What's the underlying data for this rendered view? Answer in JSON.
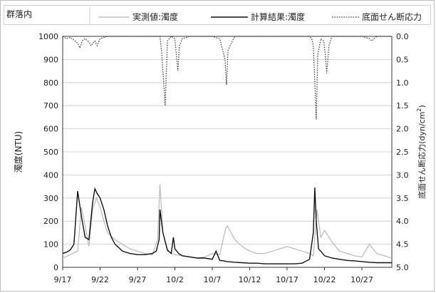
{
  "chart_data": {
    "type": "line",
    "title": "群落内",
    "ylabel": "濁度(NTU)",
    "y2label": "底面せん断応力(dyn/cm²)",
    "y2label_main": "底面せん断応力(dyn/cm",
    "y2label_sup": "2",
    "y2label_close": ")",
    "ylim": [
      0,
      1000
    ],
    "y2lim": [
      0.0,
      5.0
    ],
    "y2_inverted": true,
    "xlim": [
      "9/17",
      "10/31"
    ],
    "grid": "horizontal",
    "legend_position": "top",
    "x_ticks": [
      "9/17",
      "9/22",
      "9/27",
      "10/2",
      "10/7",
      "10/12",
      "10/17",
      "10/22",
      "10/27"
    ],
    "y_ticks": [
      "0",
      "100",
      "200",
      "300",
      "400",
      "500",
      "600",
      "700",
      "800",
      "900",
      "1000"
    ],
    "y2_ticks": [
      "0.0",
      "0.5",
      "1.0",
      "1.5",
      "2.0",
      "2.5",
      "3.0",
      "3.5",
      "4.0",
      "4.5",
      "5.0"
    ],
    "series": [
      {
        "name": "実測値:濁度",
        "axis": "left",
        "style": "light-gray",
        "x": [
          "9/17",
          "9/18",
          "9/19",
          "9/19.5",
          "9/20",
          "9/20.5",
          "9/21",
          "9/21.5",
          "9/22",
          "9/22.5",
          "9/23",
          "9/24",
          "9/25",
          "9/26",
          "9/27",
          "9/28",
          "9/29",
          "9/29.7",
          "9/30",
          "9/30.4",
          "10/1",
          "10/2",
          "10/3",
          "10/4",
          "10/5",
          "10/6",
          "10/7",
          "10/8",
          "10/8.8",
          "10/9",
          "10/9.5",
          "10/10",
          "10/11",
          "10/12",
          "10/13",
          "10/14",
          "10/15",
          "10/16",
          "10/17",
          "10/18",
          "10/19",
          "10/20",
          "10/20.5",
          "10/21",
          "10/21.5",
          "10/22",
          "10/23",
          "10/24",
          "10/25",
          "10/26",
          "10/27",
          "10/28",
          "10/29",
          "10/30",
          "10/31"
        ],
        "values": [
          40,
          55,
          70,
          260,
          180,
          90,
          250,
          300,
          260,
          200,
          150,
          120,
          100,
          80,
          70,
          60,
          55,
          120,
          360,
          150,
          70,
          55,
          50,
          45,
          40,
          45,
          60,
          55,
          170,
          180,
          150,
          120,
          90,
          70,
          60,
          60,
          70,
          80,
          90,
          80,
          70,
          60,
          50,
          250,
          130,
          160,
          110,
          70,
          60,
          50,
          45,
          100,
          60,
          50,
          40
        ]
      },
      {
        "name": "計算結果:濁度",
        "axis": "left",
        "style": "solid",
        "x": [
          "9/17",
          "9/17.5",
          "9/18",
          "9/18.5",
          "9/19",
          "9/19.5",
          "9/20",
          "9/20.5",
          "9/21",
          "9/21.3",
          "9/21.6",
          "9/22",
          "9/22.5",
          "9/23",
          "9/23.5",
          "9/24",
          "9/25",
          "9/26",
          "9/27",
          "9/28",
          "9/29",
          "9/29.5",
          "9/29.9",
          "9/30",
          "9/30.4",
          "9/30.8",
          "10/1",
          "10/1.5",
          "10/1.8",
          "10/2",
          "10/2.5",
          "10/3",
          "10/4",
          "10/5",
          "10/6",
          "10/7",
          "10/7.5",
          "10/8",
          "10/8.5",
          "10/9",
          "10/10",
          "10/11",
          "10/12",
          "10/13",
          "10/14",
          "10/15",
          "10/16",
          "10/17",
          "10/18",
          "10/19",
          "10/20",
          "10/20.5",
          "10/20.7",
          "10/20.9",
          "10/21.2",
          "10/21.5",
          "10/22",
          "10/23",
          "10/24",
          "10/25",
          "10/26",
          "10/27",
          "10/28",
          "10/29",
          "10/30",
          "10/31"
        ],
        "values": [
          60,
          65,
          75,
          100,
          330,
          220,
          130,
          120,
          280,
          340,
          320,
          300,
          250,
          180,
          130,
          100,
          70,
          60,
          55,
          55,
          60,
          70,
          120,
          250,
          150,
          100,
          75,
          60,
          130,
          80,
          60,
          50,
          45,
          40,
          40,
          35,
          70,
          30,
          28,
          25,
          22,
          20,
          18,
          18,
          15,
          15,
          15,
          15,
          15,
          18,
          35,
          150,
          345,
          200,
          80,
          70,
          50,
          40,
          35,
          30,
          28,
          25,
          22,
          20,
          20,
          20
        ]
      },
      {
        "name": "底面せん断応力",
        "axis": "right",
        "style": "dotted",
        "x": [
          "9/17",
          "9/17.5",
          "9/18",
          "9/18.5",
          "9/19",
          "9/19.3",
          "9/19.6",
          "9/20",
          "9/20.5",
          "9/20.8",
          "9/21",
          "9/21.3",
          "9/21.6",
          "9/22",
          "9/23",
          "9/24",
          "9/25",
          "9/26",
          "9/27",
          "9/28",
          "9/29",
          "9/30",
          "9/30.2",
          "9/30.5",
          "9/30.7",
          "9/30.9",
          "10/1",
          "10/1.5",
          "10/2",
          "10/2.2",
          "10/2.4",
          "10/2.6",
          "10/3",
          "10/4",
          "10/5",
          "10/6",
          "10/7",
          "10/8",
          "10/8.7",
          "10/8.9",
          "10/9.1",
          "10/10",
          "10/12",
          "10/15",
          "10/17",
          "10/18",
          "10/19",
          "10/20",
          "10/20.3",
          "10/20.5",
          "10/20.7",
          "10/20.9",
          "10/21.1",
          "10/21.5",
          "10/21.9",
          "10/22.1",
          "10/22.3",
          "10/22.6",
          "10/23",
          "10/25",
          "10/27",
          "10/28",
          "10/28.3",
          "10/28.6",
          "10/29",
          "10/31"
        ],
        "values": [
          0.0,
          0.05,
          0.02,
          0.08,
          0.15,
          0.25,
          0.1,
          0.05,
          0.12,
          0.2,
          0.15,
          0.1,
          0.2,
          0.05,
          0.0,
          0.0,
          0.0,
          0.0,
          0.0,
          0.0,
          0.0,
          0.0,
          0.3,
          1.0,
          1.5,
          0.6,
          0.1,
          0.0,
          0.05,
          0.4,
          0.75,
          0.2,
          0.05,
          0.0,
          0.0,
          0.0,
          0.0,
          0.05,
          0.5,
          1.05,
          0.3,
          0.0,
          0.0,
          0.0,
          0.0,
          0.0,
          0.0,
          0.0,
          0.05,
          0.2,
          1.0,
          1.8,
          0.4,
          0.05,
          0.1,
          0.4,
          0.8,
          0.2,
          0.0,
          0.0,
          0.0,
          0.05,
          0.1,
          0.05,
          0.0,
          0.0
        ]
      }
    ]
  }
}
